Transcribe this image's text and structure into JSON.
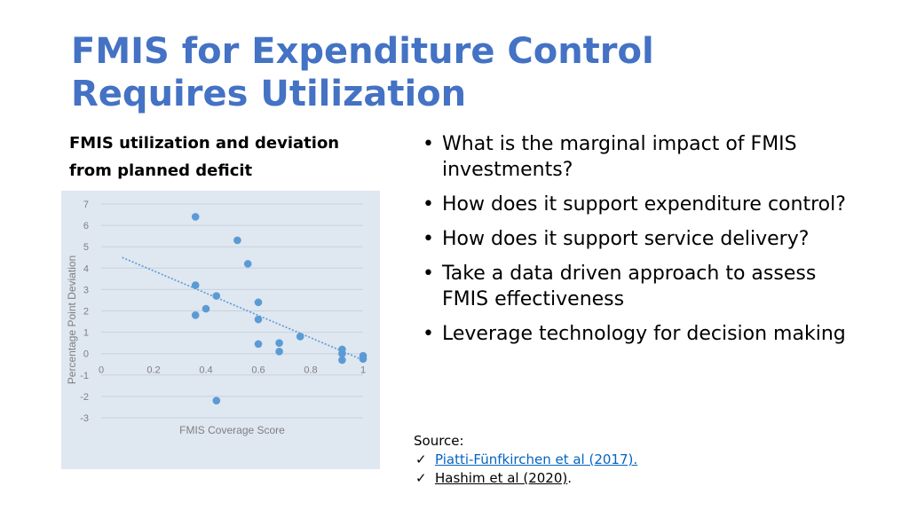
{
  "slide": {
    "title_line1": "FMIS for Expenditure Control",
    "title_line2": "Requires Utilization",
    "chart_caption_line1": "FMIS utilization and deviation",
    "chart_caption_line2": "from planned deficit"
  },
  "bullets": [
    "What is the marginal impact of FMIS investments?",
    "How does it support expenditure control?",
    "How does it support service delivery?",
    "Take a data driven approach to assess FMIS effectiveness",
    "Leverage technology for decision making"
  ],
  "bullet_icon": "bullet-dot-icon",
  "source": {
    "label": "Source:",
    "check_icon": "checkmark-icon",
    "refs": [
      {
        "text": "Piatti-Fünfkirchen et al (2017).",
        "link": true
      },
      {
        "text": "Hashim et al (2020)",
        "suffix": ".",
        "link": false
      }
    ]
  },
  "colors": {
    "title": "#4472c4",
    "chart_background": "#dfe7f1",
    "points": "#5b9bd5",
    "trendline": "#5b9bd5",
    "link": "#0563c1"
  },
  "chart_data": {
    "type": "scatter",
    "title": "",
    "xlabel": "FMIS Coverage Score",
    "ylabel": "Percentage Point Deviation",
    "xlim": [
      0,
      1
    ],
    "ylim": [
      -3,
      7
    ],
    "x_ticks": [
      "0",
      "0.2",
      "0.4",
      "0.6",
      "0.8",
      "1"
    ],
    "y_ticks": [
      "7",
      "6",
      "5",
      "4",
      "3",
      "2",
      "1",
      "0",
      "-1",
      "-2",
      "-3"
    ],
    "grid": "horizontal",
    "legend": "none",
    "trendline": {
      "style": "dotted",
      "x": [
        0.08,
        1.0
      ],
      "y": [
        4.5,
        -0.3
      ]
    },
    "points": [
      {
        "x": 0.36,
        "y": 6.4
      },
      {
        "x": 0.52,
        "y": 5.3
      },
      {
        "x": 0.56,
        "y": 4.2
      },
      {
        "x": 0.36,
        "y": 3.2
      },
      {
        "x": 0.44,
        "y": 2.7
      },
      {
        "x": 0.6,
        "y": 2.4
      },
      {
        "x": 0.4,
        "y": 2.1
      },
      {
        "x": 0.36,
        "y": 1.8
      },
      {
        "x": 0.6,
        "y": 1.6
      },
      {
        "x": 0.76,
        "y": 0.8
      },
      {
        "x": 0.6,
        "y": 0.45
      },
      {
        "x": 0.68,
        "y": 0.5
      },
      {
        "x": 0.68,
        "y": 0.1
      },
      {
        "x": 0.92,
        "y": 0.2
      },
      {
        "x": 0.92,
        "y": 0.0
      },
      {
        "x": 0.92,
        "y": -0.3
      },
      {
        "x": 1.0,
        "y": -0.1
      },
      {
        "x": 1.0,
        "y": -0.25
      },
      {
        "x": 0.44,
        "y": -2.2
      }
    ]
  }
}
